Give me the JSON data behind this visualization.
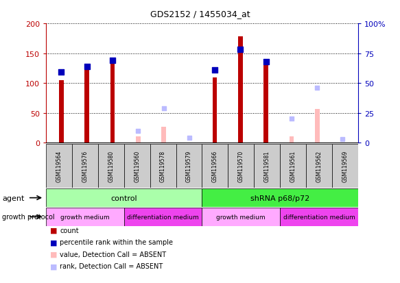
{
  "title": "GDS2152 / 1455034_at",
  "samples": [
    "GSM119564",
    "GSM119576",
    "GSM119580",
    "GSM119560",
    "GSM119578",
    "GSM119579",
    "GSM119566",
    "GSM119570",
    "GSM119581",
    "GSM119561",
    "GSM119562",
    "GSM119569"
  ],
  "count_values": [
    105,
    122,
    137,
    null,
    null,
    null,
    109,
    178,
    133,
    null,
    null,
    null
  ],
  "percentile_values": [
    59,
    64,
    69,
    null,
    null,
    null,
    61,
    78,
    68,
    null,
    null,
    null
  ],
  "absent_value": [
    null,
    null,
    null,
    10,
    27,
    null,
    null,
    null,
    null,
    10,
    57,
    null
  ],
  "absent_rank": [
    null,
    null,
    null,
    10,
    29,
    4,
    null,
    null,
    null,
    20,
    46,
    3
  ],
  "ylim_left": [
    0,
    200
  ],
  "ylim_right": [
    0,
    100
  ],
  "yticks_left": [
    0,
    50,
    100,
    150,
    200
  ],
  "yticks_right": [
    0,
    25,
    50,
    75,
    100
  ],
  "ytick_labels_left": [
    "0",
    "50",
    "100",
    "150",
    "200"
  ],
  "ytick_labels_right": [
    "0",
    "25",
    "50",
    "75",
    "100%"
  ],
  "agent_groups": [
    {
      "label": "control",
      "start": 0,
      "end": 6,
      "color": "#AAFFAA"
    },
    {
      "label": "shRNA p68/p72",
      "start": 6,
      "end": 12,
      "color": "#44EE44"
    }
  ],
  "growth_groups": [
    {
      "label": "growth medium",
      "start": 0,
      "end": 3,
      "color": "#FFAAFF"
    },
    {
      "label": "differentiation medium",
      "start": 3,
      "end": 6,
      "color": "#EE44EE"
    },
    {
      "label": "growth medium",
      "start": 6,
      "end": 9,
      "color": "#FFAAFF"
    },
    {
      "label": "differentiation medium",
      "start": 9,
      "end": 12,
      "color": "#EE44EE"
    }
  ],
  "count_color": "#BB0000",
  "percentile_color": "#0000BB",
  "absent_value_color": "#FFBBBB",
  "absent_rank_color": "#BBBBFF",
  "sample_box_color": "#CCCCCC",
  "legend_items": [
    {
      "color": "#BB0000",
      "label": "count"
    },
    {
      "color": "#0000BB",
      "label": "percentile rank within the sample"
    },
    {
      "color": "#FFBBBB",
      "label": "value, Detection Call = ABSENT"
    },
    {
      "color": "#BBBBFF",
      "label": "rank, Detection Call = ABSENT"
    }
  ]
}
